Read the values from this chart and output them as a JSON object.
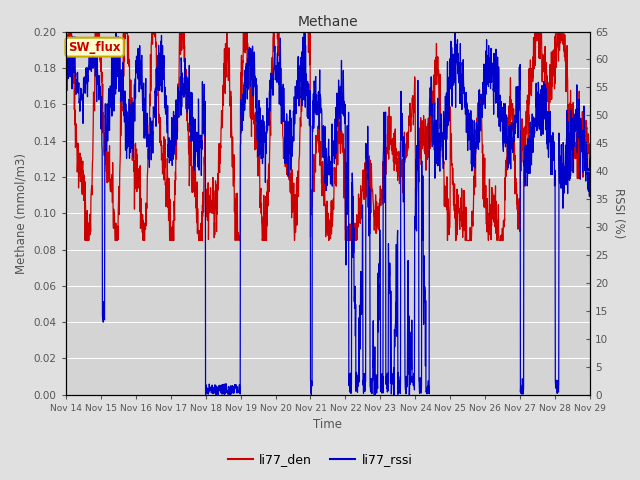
{
  "title": "Methane",
  "ylabel_left": "Methane (mmol/m3)",
  "ylabel_right": "RSSI (%)",
  "xlabel": "Time",
  "ylim_left": [
    0.0,
    0.2
  ],
  "ylim_right": [
    0,
    65
  ],
  "yticks_left": [
    0.0,
    0.02,
    0.04,
    0.06,
    0.08,
    0.1,
    0.12,
    0.14,
    0.16,
    0.18,
    0.2
  ],
  "yticks_right": [
    0,
    5,
    10,
    15,
    20,
    25,
    30,
    35,
    40,
    45,
    50,
    55,
    60,
    65
  ],
  "line1_color": "#cc0000",
  "line2_color": "#0000cc",
  "line1_label": "li77_den",
  "line2_label": "li77_rssi",
  "bg_color": "#e0e0e0",
  "plot_bg_color": "#d4d4d4",
  "grid_color": "#ffffff",
  "sw_flux_label": "SW_flux",
  "sw_flux_bg": "#ffffcc",
  "sw_flux_border": "#ccaa00",
  "xticklabels": [
    "Nov 14",
    "Nov 15",
    "Nov 16",
    "Nov 17",
    "Nov 18",
    "Nov 19",
    "Nov 20",
    "Nov 21",
    "Nov 22",
    "Nov 23",
    "Nov 24",
    "Nov 25",
    "Nov 26",
    "Nov 27",
    "Nov 28",
    "Nov 29"
  ],
  "tick_label_color": "#555555",
  "axis_label_color": "#555555",
  "title_color": "#333333",
  "seed": 42,
  "n_points": 2000,
  "linewidth": 0.9
}
